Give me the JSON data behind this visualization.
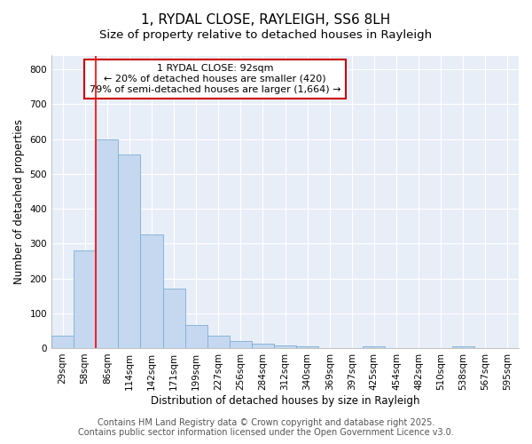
{
  "title": "1, RYDAL CLOSE, RAYLEIGH, SS6 8LH",
  "subtitle": "Size of property relative to detached houses in Rayleigh",
  "xlabel": "Distribution of detached houses by size in Rayleigh",
  "ylabel": "Number of detached properties",
  "categories": [
    "29sqm",
    "58sqm",
    "86sqm",
    "114sqm",
    "142sqm",
    "171sqm",
    "199sqm",
    "227sqm",
    "256sqm",
    "284sqm",
    "312sqm",
    "340sqm",
    "369sqm",
    "397sqm",
    "425sqm",
    "454sqm",
    "482sqm",
    "510sqm",
    "538sqm",
    "567sqm",
    "595sqm"
  ],
  "values": [
    35,
    280,
    600,
    555,
    325,
    170,
    65,
    35,
    20,
    12,
    8,
    6,
    0,
    0,
    5,
    0,
    0,
    0,
    5,
    0,
    0
  ],
  "bar_color": "#c5d8f0",
  "bar_edge_color": "#7bafd4",
  "red_line_index": 2,
  "annotation_title": "1 RYDAL CLOSE: 92sqm",
  "annotation_line2": "← 20% of detached houses are smaller (420)",
  "annotation_line3": "79% of semi-detached houses are larger (1,664) →",
  "annotation_box_color": "#cc0000",
  "ylim": [
    0,
    840
  ],
  "yticks": [
    0,
    100,
    200,
    300,
    400,
    500,
    600,
    700,
    800
  ],
  "footer_line1": "Contains HM Land Registry data © Crown copyright and database right 2025.",
  "footer_line2": "Contains public sector information licensed under the Open Government Licence v3.0.",
  "plot_bg_color": "#e8eef8",
  "fig_bg_color": "#ffffff",
  "grid_color": "#ffffff",
  "title_fontsize": 11,
  "subtitle_fontsize": 9.5,
  "axis_label_fontsize": 8.5,
  "tick_fontsize": 7.5,
  "footer_fontsize": 7,
  "annot_fontsize": 8
}
